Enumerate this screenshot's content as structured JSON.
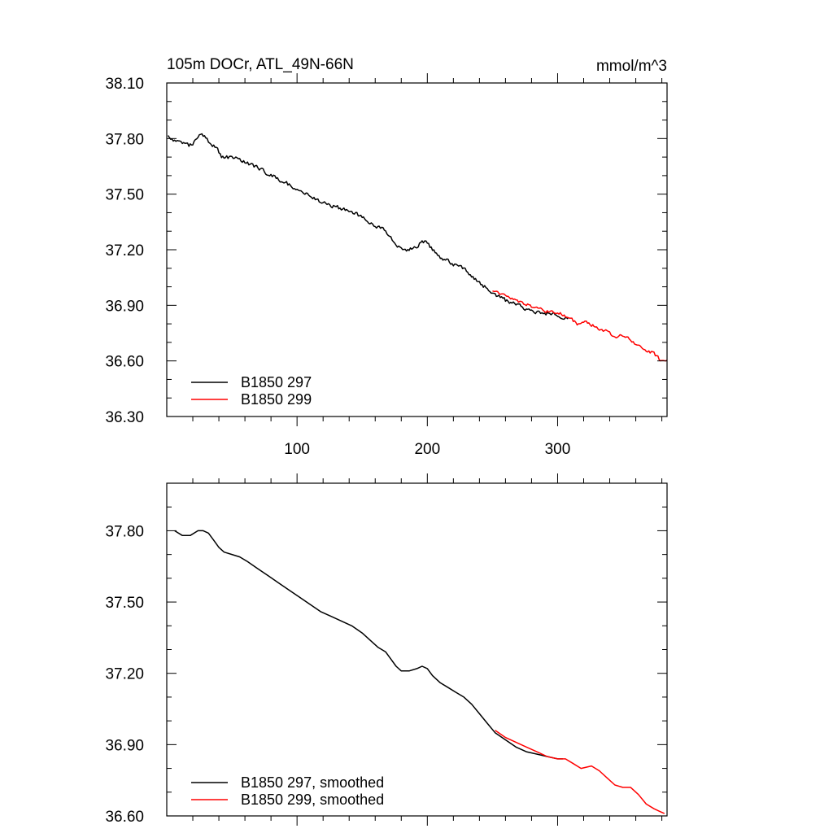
{
  "chart_data": [
    {
      "type": "line",
      "title": "105m DOCr, ATL_49N-66N",
      "units": "mmol/m^3",
      "xlabel": "",
      "ylabel": "",
      "xlim": [
        0,
        384
      ],
      "ylim": [
        36.3,
        38.1
      ],
      "xticks": [
        100,
        200,
        300
      ],
      "xtick_labels": [
        "100",
        "200",
        "300"
      ],
      "yticks": [
        36.3,
        36.6,
        36.9,
        37.2,
        37.5,
        37.8,
        38.1
      ],
      "ytick_labels": [
        "36.30",
        "36.60",
        "36.90",
        "37.20",
        "37.50",
        "37.80",
        "38.10"
      ],
      "legend_position": "bottom-left",
      "grid": false,
      "series": [
        {
          "name": "B1850 297",
          "color": "#000000",
          "anchors": [
            [
              1,
              37.82
            ],
            [
              5,
              37.79
            ],
            [
              12,
              37.78
            ],
            [
              17,
              37.76
            ],
            [
              22,
              37.79
            ],
            [
              26,
              37.82
            ],
            [
              30,
              37.8
            ],
            [
              34,
              37.77
            ],
            [
              38,
              37.76
            ],
            [
              42,
              37.7
            ],
            [
              48,
              37.7
            ],
            [
              55,
              37.69
            ],
            [
              62,
              37.67
            ],
            [
              70,
              37.64
            ],
            [
              78,
              37.61
            ],
            [
              86,
              37.58
            ],
            [
              94,
              37.55
            ],
            [
              100,
              37.53
            ],
            [
              110,
              37.49
            ],
            [
              118,
              37.46
            ],
            [
              126,
              37.44
            ],
            [
              134,
              37.42
            ],
            [
              140,
              37.41
            ],
            [
              146,
              37.39
            ],
            [
              152,
              37.37
            ],
            [
              158,
              37.34
            ],
            [
              164,
              37.32
            ],
            [
              168,
              37.3
            ],
            [
              172,
              37.27
            ],
            [
              176,
              37.23
            ],
            [
              180,
              37.21
            ],
            [
              185,
              37.2
            ],
            [
              190,
              37.21
            ],
            [
              196,
              37.24
            ],
            [
              199,
              37.25
            ],
            [
              203,
              37.21
            ],
            [
              207,
              37.18
            ],
            [
              212,
              37.15
            ],
            [
              218,
              37.13
            ],
            [
              224,
              37.11
            ],
            [
              228,
              37.1
            ],
            [
              234,
              37.06
            ],
            [
              240,
              37.02
            ],
            [
              244,
              37.0
            ],
            [
              248,
              36.98
            ],
            [
              254,
              36.95
            ],
            [
              262,
              36.92
            ],
            [
              270,
              36.9
            ],
            [
              280,
              36.87
            ],
            [
              290,
              36.86
            ],
            [
              298,
              36.85
            ],
            [
              304,
              36.84
            ],
            [
              308,
              36.82
            ]
          ],
          "noise": 0.01,
          "seed": 297
        },
        {
          "name": "B1850 299",
          "color": "#ff0000",
          "anchors": [
            [
              250,
              36.98
            ],
            [
              258,
              36.96
            ],
            [
              266,
              36.93
            ],
            [
              274,
              36.91
            ],
            [
              282,
              36.89
            ],
            [
              290,
              36.87
            ],
            [
              298,
              36.86
            ],
            [
              305,
              36.85
            ],
            [
              310,
              36.83
            ],
            [
              315,
              36.8
            ],
            [
              322,
              36.81
            ],
            [
              330,
              36.78
            ],
            [
              338,
              36.76
            ],
            [
              344,
              36.73
            ],
            [
              350,
              36.74
            ],
            [
              356,
              36.71
            ],
            [
              362,
              36.68
            ],
            [
              368,
              36.66
            ],
            [
              374,
              36.64
            ],
            [
              378,
              36.61
            ],
            [
              382,
              36.6
            ],
            [
              384,
              36.6
            ]
          ],
          "noise": 0.008,
          "seed": 299
        }
      ]
    },
    {
      "type": "line",
      "title": "",
      "xlabel": "",
      "ylabel": "",
      "xlim": [
        0,
        384
      ],
      "ylim": [
        36.6,
        38.0
      ],
      "xticks": [
        100,
        200,
        300
      ],
      "xtick_labels": [
        "",
        "",
        ""
      ],
      "yticks": [
        36.6,
        36.9,
        37.2,
        37.5,
        37.8
      ],
      "ytick_labels": [
        "36.60",
        "36.90",
        "37.20",
        "37.50",
        "37.80"
      ],
      "legend_position": "bottom-left",
      "grid": false,
      "series": [
        {
          "name": "B1850 297, smoothed",
          "color": "#000000",
          "points": [
            [
              6,
              37.8
            ],
            [
              12,
              37.78
            ],
            [
              18,
              37.78
            ],
            [
              24,
              37.8
            ],
            [
              28,
              37.8
            ],
            [
              32,
              37.79
            ],
            [
              36,
              37.76
            ],
            [
              40,
              37.73
            ],
            [
              44,
              37.71
            ],
            [
              50,
              37.7
            ],
            [
              56,
              37.69
            ],
            [
              62,
              37.67
            ],
            [
              70,
              37.64
            ],
            [
              78,
              37.61
            ],
            [
              86,
              37.58
            ],
            [
              94,
              37.55
            ],
            [
              102,
              37.52
            ],
            [
              110,
              37.49
            ],
            [
              118,
              37.46
            ],
            [
              126,
              37.44
            ],
            [
              134,
              37.42
            ],
            [
              142,
              37.4
            ],
            [
              150,
              37.37
            ],
            [
              156,
              37.34
            ],
            [
              162,
              37.31
            ],
            [
              168,
              37.29
            ],
            [
              172,
              37.26
            ],
            [
              176,
              37.23
            ],
            [
              180,
              37.21
            ],
            [
              186,
              37.21
            ],
            [
              192,
              37.22
            ],
            [
              196,
              37.23
            ],
            [
              200,
              37.22
            ],
            [
              204,
              37.19
            ],
            [
              210,
              37.16
            ],
            [
              216,
              37.14
            ],
            [
              222,
              37.12
            ],
            [
              228,
              37.1
            ],
            [
              234,
              37.07
            ],
            [
              240,
              37.03
            ],
            [
              246,
              36.99
            ],
            [
              252,
              36.95
            ],
            [
              260,
              36.92
            ],
            [
              268,
              36.89
            ],
            [
              276,
              36.87
            ],
            [
              284,
              36.86
            ],
            [
              292,
              36.85
            ],
            [
              300,
              36.84
            ],
            [
              304,
              36.84
            ]
          ],
          "noise": 0,
          "seed": 1
        },
        {
          "name": "B1850 299, smoothed",
          "color": "#ff0000",
          "points": [
            [
              252,
              36.96
            ],
            [
              260,
              36.93
            ],
            [
              268,
              36.91
            ],
            [
              276,
              36.89
            ],
            [
              284,
              36.87
            ],
            [
              292,
              36.85
            ],
            [
              300,
              36.84
            ],
            [
              306,
              36.84
            ],
            [
              312,
              36.82
            ],
            [
              318,
              36.8
            ],
            [
              326,
              36.81
            ],
            [
              332,
              36.79
            ],
            [
              338,
              36.76
            ],
            [
              344,
              36.73
            ],
            [
              350,
              36.72
            ],
            [
              356,
              36.72
            ],
            [
              362,
              36.69
            ],
            [
              368,
              36.65
            ],
            [
              374,
              36.63
            ],
            [
              378,
              36.62
            ],
            [
              382,
              36.61
            ]
          ],
          "noise": 0,
          "seed": 2
        }
      ]
    }
  ]
}
